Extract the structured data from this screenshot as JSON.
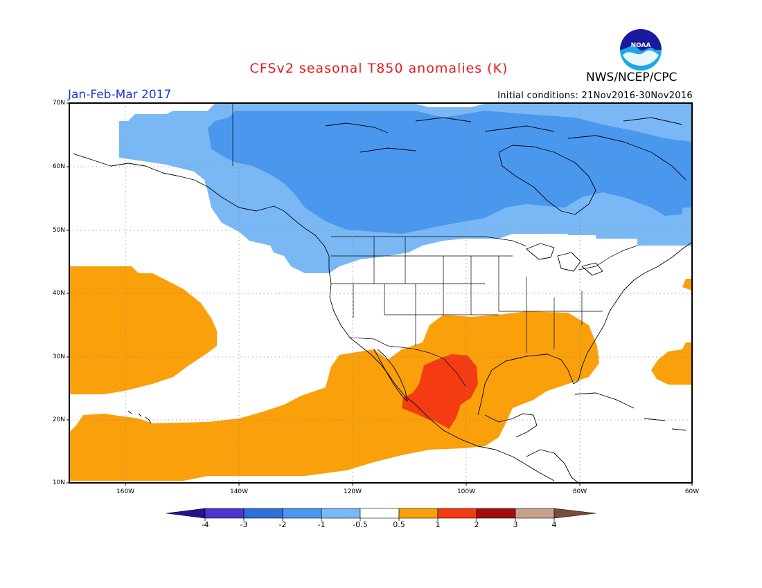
{
  "title": "CFSv2 seasonal T850 anomalies (K)",
  "agency": "NWS/NCEP/CPC",
  "period": "Jan-Feb-Mar 2017",
  "initial_conditions": "Initial conditions: 21Nov2016-30Nov2016",
  "logo_text": "NOAA",
  "lat_labels": [
    "70N",
    "60N",
    "50N",
    "40N",
    "30N",
    "20N",
    "10N"
  ],
  "lon_labels": [
    "160W",
    "140W",
    "120W",
    "100W",
    "80W",
    "60W"
  ],
  "colorbar": {
    "labels": [
      "-4",
      "-3",
      "-2",
      "-1",
      "-0.5",
      "0.5",
      "1",
      "2",
      "3",
      "4"
    ],
    "colors": [
      "#2a0f8f",
      "#4b35d0",
      "#2f6fd8",
      "#4a97ee",
      "#7ab8f5",
      "#ffffff",
      "#f9a00b",
      "#f53b12",
      "#a50c0c",
      "#c9a08c",
      "#7a4a3a"
    ]
  },
  "map_colors": {
    "light_blue": "#7ab8f5",
    "blue": "#4a97ee",
    "orange": "#f9a00b",
    "red": "#f53b12"
  }
}
